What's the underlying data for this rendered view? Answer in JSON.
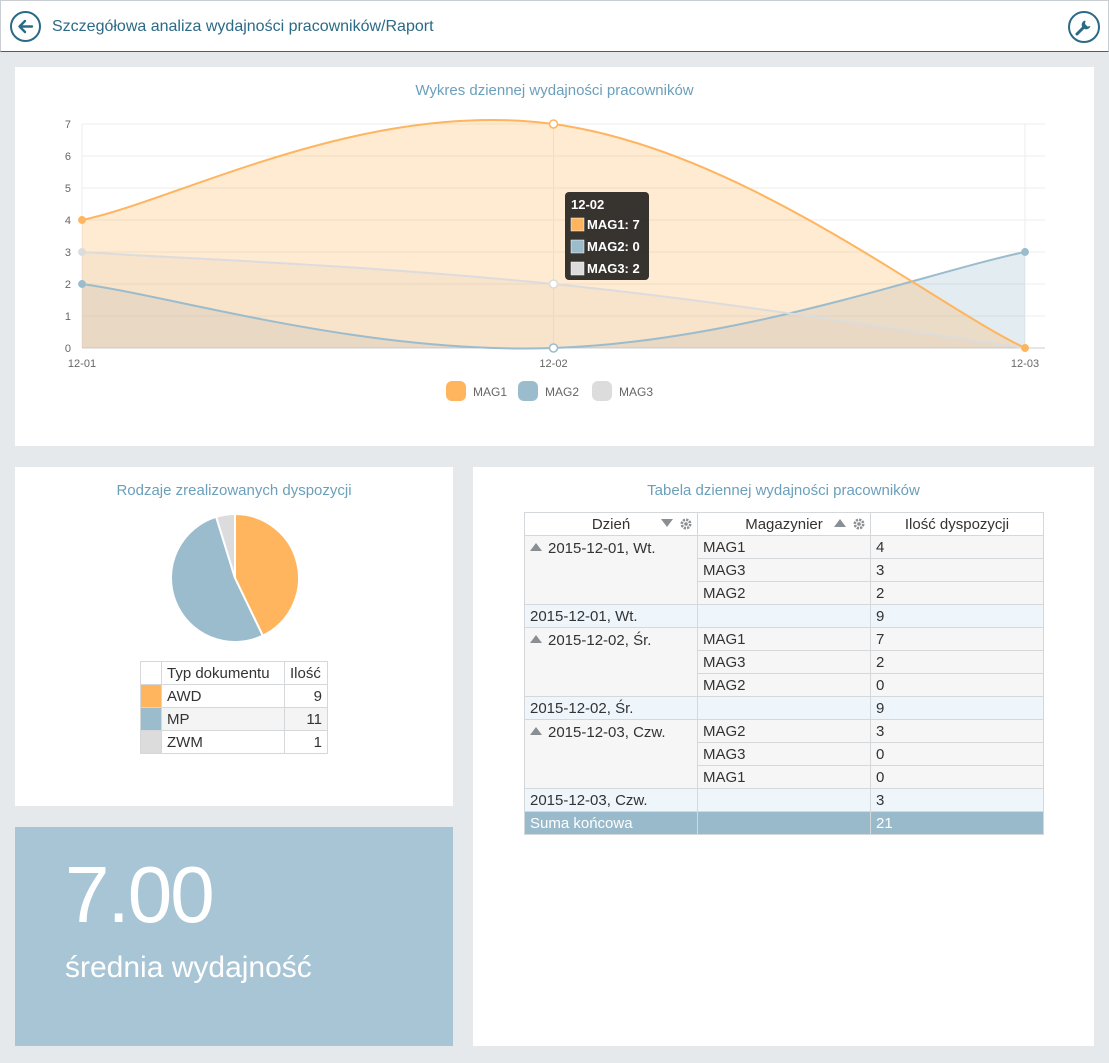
{
  "header": {
    "title": "Szczegółowa analiza wydajności pracowników/Raport",
    "back_icon": "arrow-left-icon",
    "tool_icon": "wrench-icon"
  },
  "colors": {
    "mag1": "#ffb45e",
    "mag2": "#9bbccd",
    "mag3": "#dcdcdc",
    "accent": "#2b6a86"
  },
  "chart_data": {
    "type": "area",
    "title": "Wykres dziennej wydajności pracowników",
    "categories": [
      "12-01",
      "12-02",
      "12-03"
    ],
    "ylim": [
      0,
      7
    ],
    "yticks": [
      0,
      1,
      2,
      3,
      4,
      5,
      6,
      7
    ],
    "series": [
      {
        "name": "MAG1",
        "values": [
          4,
          7,
          0
        ]
      },
      {
        "name": "MAG2",
        "values": [
          2,
          0,
          3
        ]
      },
      {
        "name": "MAG3",
        "values": [
          3,
          2,
          0
        ]
      }
    ],
    "legend": "bottom-center",
    "tooltip": {
      "title": "12-02",
      "rows": [
        "MAG1: 7",
        "MAG2: 0",
        "MAG3: 2"
      ]
    }
  },
  "pie": {
    "title": "Rodzaje zrealizowanych dyspozycji",
    "header_type": "Typ dokumentu",
    "header_count": "Ilość",
    "rows": [
      {
        "label": "AWD",
        "value": 9,
        "color": "#ffb45e"
      },
      {
        "label": "MP",
        "value": 11,
        "color": "#9bbccd"
      },
      {
        "label": "ZWM",
        "value": 1,
        "color": "#dcdcdc"
      }
    ]
  },
  "kpi": {
    "value": "7.00",
    "label": "średnia wydajność"
  },
  "grid": {
    "title": "Tabela dziennej wydajności pracowników",
    "col_day": "Dzień",
    "col_mag": "Magazynier",
    "col_count": "Ilość dyspozycji",
    "groups": [
      {
        "day": "2015-12-01, Wt.",
        "rows": [
          [
            "MAG1",
            "4"
          ],
          [
            "MAG3",
            "3"
          ],
          [
            "MAG2",
            "2"
          ]
        ],
        "subtotal_label": "2015-12-01, Wt.",
        "subtotal": "9"
      },
      {
        "day": "2015-12-02, Śr.",
        "rows": [
          [
            "MAG1",
            "7"
          ],
          [
            "MAG3",
            "2"
          ],
          [
            "MAG2",
            "0"
          ]
        ],
        "subtotal_label": "2015-12-02, Śr.",
        "subtotal": "9"
      },
      {
        "day": "2015-12-03, Czw.",
        "rows": [
          [
            "MAG2",
            "3"
          ],
          [
            "MAG3",
            "0"
          ],
          [
            "MAG1",
            "0"
          ]
        ],
        "subtotal_label": "2015-12-03, Czw.",
        "subtotal": "3"
      }
    ],
    "total_label": "Suma końcowa",
    "total": "21"
  }
}
